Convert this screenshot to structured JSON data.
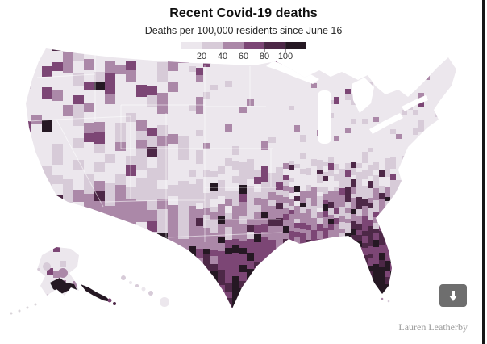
{
  "header": {
    "title": "Recent Covid-19 deaths",
    "subtitle": "Deaths per 100,000 residents since June 16"
  },
  "legend": {
    "tick_labels": [
      "20",
      "40",
      "60",
      "80",
      "100"
    ],
    "colors": [
      "#ece7ed",
      "#d7cbd8",
      "#ab88a8",
      "#7c4675",
      "#4d2847",
      "#251823"
    ],
    "bins": [
      "0-20",
      "20-40",
      "40-60",
      "60-80",
      "80-100",
      "100+"
    ]
  },
  "chart_data": {
    "type": "heatmap",
    "subtype": "choropleth-county-map",
    "title": "Recent Covid-19 deaths",
    "subtitle": "Deaths per 100,000 residents since June 16",
    "unit": "deaths per 100,000 residents since June 16",
    "geography": "United States counties, with Alaska and Hawaii insets at lower left",
    "legend_position": "top-center",
    "color_scale": {
      "breaks": [
        20,
        40,
        60,
        80,
        100
      ],
      "colors": [
        "#ece7ed",
        "#d7cbd8",
        "#ab88a8",
        "#7c4675",
        "#4d2847",
        "#251823"
      ],
      "bins": [
        "0-20",
        "20-40",
        "40-60",
        "60-80",
        "80-100",
        "100+"
      ]
    },
    "regional_pattern": [
      {
        "region": "Deep South (TX Gulf Coast, LA, MS, AL, GA, FL, SC, TN, AR)",
        "approx_deaths_per_100k": "60-100+"
      },
      {
        "region": "South Texas / Rio Grande Valley",
        "approx_deaths_per_100k": "100+"
      },
      {
        "region": "Florida peninsula",
        "approx_deaths_per_100k": "60-100+"
      },
      {
        "region": "Southwest (AZ, NM, southern NV)",
        "approx_deaths_per_100k": "40-100"
      },
      {
        "region": "Mountain West / Pacific Northwest",
        "approx_deaths_per_100k": "0-60 with scattered 100+ counties"
      },
      {
        "region": "Midwest and Plains",
        "approx_deaths_per_100k": "0-40 with scattered darker counties"
      },
      {
        "region": "Northeast",
        "approx_deaths_per_100k": "0-20, northern Maine 40-60"
      },
      {
        "region": "South-coastal Alaska",
        "approx_deaths_per_100k": "100+"
      },
      {
        "region": "Hawaii",
        "approx_deaths_per_100k": "0-40"
      }
    ]
  },
  "footer": {
    "credit": "Lauren Leatherby"
  },
  "controls": {
    "download_button": {
      "icon": "arrow-down-icon",
      "color": "#6e6e6e"
    }
  }
}
